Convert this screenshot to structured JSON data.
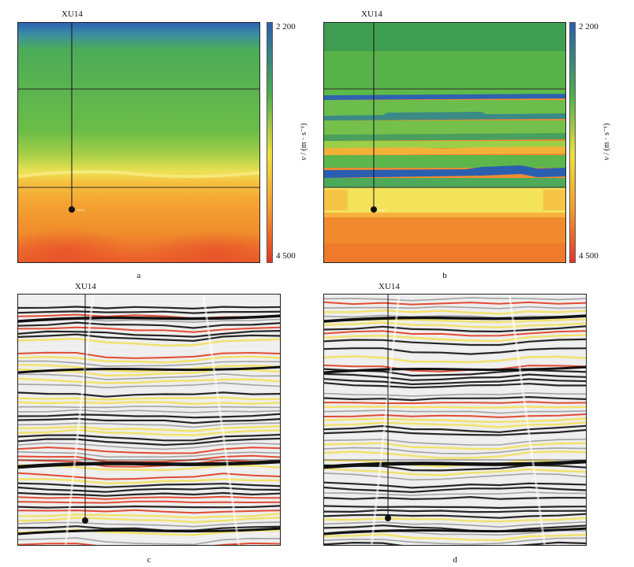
{
  "well_name": "XU14",
  "panels": [
    {
      "id": "a",
      "label": "a"
    },
    {
      "id": "b",
      "label": "b"
    },
    {
      "id": "c",
      "label": "c"
    },
    {
      "id": "d",
      "label": "d"
    }
  ],
  "colorbar": {
    "top_value": "2 200",
    "bottom_value": "4 500",
    "axis_label_var": "v",
    "axis_label_unit": "/ (m · s⁻¹)",
    "colors": [
      "#2a5fb0",
      "#4cae4c",
      "#f0e03a",
      "#f59a2e",
      "#e43525"
    ]
  },
  "seismic_colors": {
    "positive": "#e03a1e",
    "mid": "#f2e05a",
    "neutral": "#f2f2f2",
    "negative": "#111111"
  },
  "well_marker_tag": "XU14"
}
